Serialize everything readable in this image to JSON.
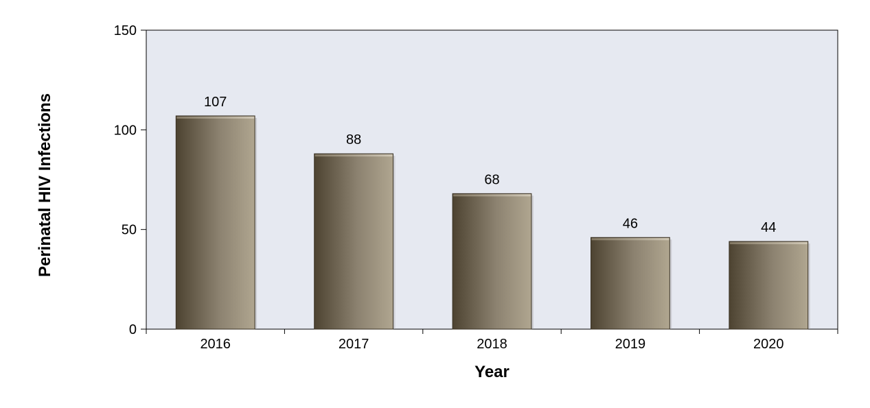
{
  "chart_data": {
    "type": "bar",
    "title": "",
    "xlabel": "Year",
    "ylabel": "Perinatal HIV Infections",
    "categories": [
      "2016",
      "2017",
      "2018",
      "2019",
      "2020"
    ],
    "values": [
      107,
      88,
      68,
      46,
      44
    ],
    "data_labels": [
      "107",
      "88",
      "68",
      "46",
      "44"
    ],
    "ylim": [
      0,
      150
    ],
    "yticks": [
      0,
      50,
      100,
      150
    ],
    "ytick_labels": [
      "0",
      "50",
      "100",
      "150"
    ],
    "grid": false,
    "legend": "none",
    "colors": {
      "plot_background": "#e6e9f1",
      "bar_dark": "#4d4331",
      "bar_mid": "#8c8270",
      "bar_light": "#b0a690",
      "axis": "#000000"
    }
  }
}
